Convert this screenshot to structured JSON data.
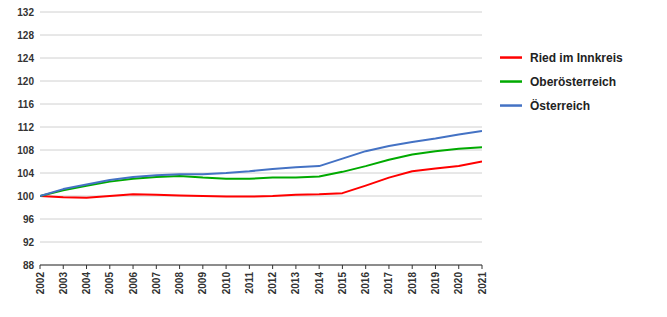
{
  "chart_data": {
    "type": "line",
    "x": [
      2002,
      2003,
      2004,
      2005,
      2006,
      2007,
      2008,
      2009,
      2010,
      2011,
      2012,
      2013,
      2014,
      2015,
      2016,
      2017,
      2018,
      2019,
      2020,
      2021
    ],
    "series": [
      {
        "name": "Ried im Innkreis",
        "color": "#ff0000",
        "values": [
          100.0,
          99.8,
          99.7,
          100.0,
          100.3,
          100.2,
          100.1,
          100.0,
          99.9,
          99.9,
          100.0,
          100.2,
          100.3,
          100.5,
          101.8,
          103.2,
          104.3,
          104.8,
          105.2,
          106.0
        ]
      },
      {
        "name": "Oberösterreich",
        "color": "#00aa00",
        "values": [
          100.0,
          101.0,
          101.8,
          102.5,
          103.0,
          103.3,
          103.5,
          103.2,
          103.0,
          103.0,
          103.2,
          103.2,
          103.4,
          104.2,
          105.2,
          106.3,
          107.2,
          107.8,
          108.2,
          108.5
        ]
      },
      {
        "name": "Österreich",
        "color": "#4472c4",
        "values": [
          100.0,
          101.2,
          102.0,
          102.8,
          103.3,
          103.6,
          103.8,
          103.8,
          104.0,
          104.3,
          104.7,
          105.0,
          105.2,
          106.5,
          107.8,
          108.7,
          109.4,
          110.0,
          110.7,
          111.3
        ]
      }
    ],
    "xlim": [
      2002,
      2021
    ],
    "xticks": [
      2002,
      2003,
      2004,
      2005,
      2006,
      2007,
      2008,
      2009,
      2010,
      2011,
      2012,
      2013,
      2014,
      2015,
      2016,
      2017,
      2018,
      2019,
      2020,
      2021
    ],
    "ylim": [
      88,
      132
    ],
    "yticks": [
      88,
      92,
      96,
      100,
      104,
      108,
      112,
      116,
      120,
      124,
      128,
      132
    ],
    "grid": true,
    "legend": "right"
  }
}
